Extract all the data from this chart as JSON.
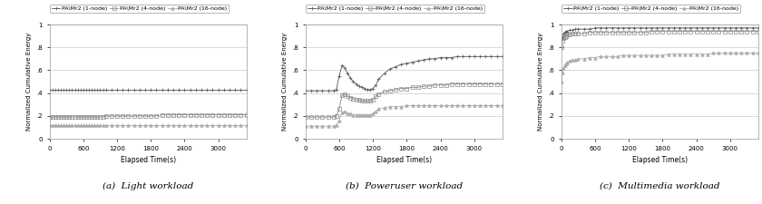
{
  "legend_labels": [
    "PA\\Mr2 (1-node)",
    "PA\\Mr2 (4-node)",
    "PA\\Mr2 (16-node)"
  ],
  "xlabel": "Elapsed Time(s)",
  "ylabel": "Normalized Cumulative Energy",
  "xlim": [
    0,
    3500
  ],
  "xticks": [
    0,
    600,
    1200,
    1800,
    2400,
    3000
  ],
  "yticks": [
    0,
    0.2,
    0.4,
    0.6,
    0.8,
    1.0
  ],
  "yticklabels": [
    "0",
    ".2",
    ".4",
    ".6",
    ".8",
    "1"
  ],
  "subtitle_a": "(a)  Light workload",
  "subtitle_b": "(b)  Poweruser workload",
  "subtitle_c": "(c)  Multimedia workload",
  "chart_a": {
    "series": [
      {
        "label": "PA\\Mr2 (1-node)",
        "x": [
          0,
          50,
          100,
          150,
          200,
          250,
          300,
          350,
          400,
          450,
          500,
          550,
          600,
          650,
          700,
          750,
          800,
          850,
          900,
          950,
          1000,
          1100,
          1200,
          1300,
          1400,
          1500,
          1600,
          1700,
          1800,
          1900,
          2000,
          2100,
          2200,
          2300,
          2400,
          2500,
          2600,
          2700,
          2800,
          2900,
          3000,
          3100,
          3200,
          3300,
          3400,
          3500
        ],
        "y": [
          0.43,
          0.43,
          0.43,
          0.43,
          0.43,
          0.43,
          0.43,
          0.43,
          0.43,
          0.43,
          0.43,
          0.43,
          0.43,
          0.43,
          0.43,
          0.43,
          0.43,
          0.43,
          0.43,
          0.43,
          0.43,
          0.43,
          0.43,
          0.43,
          0.43,
          0.43,
          0.43,
          0.43,
          0.43,
          0.43,
          0.43,
          0.43,
          0.43,
          0.43,
          0.43,
          0.43,
          0.43,
          0.43,
          0.43,
          0.43,
          0.43,
          0.43,
          0.43,
          0.43,
          0.43,
          0.43
        ],
        "marker": "+",
        "color": "#555555"
      },
      {
        "label": "PA\\Mr2 (4-node)",
        "x": [
          0,
          50,
          100,
          150,
          200,
          250,
          300,
          350,
          400,
          450,
          500,
          550,
          600,
          650,
          700,
          750,
          800,
          850,
          900,
          950,
          1000,
          1100,
          1200,
          1300,
          1400,
          1500,
          1600,
          1700,
          1800,
          1900,
          2000,
          2100,
          2200,
          2300,
          2400,
          2500,
          2600,
          2700,
          2800,
          2900,
          3000,
          3100,
          3200,
          3300,
          3400,
          3500
        ],
        "y": [
          0.19,
          0.19,
          0.19,
          0.19,
          0.19,
          0.19,
          0.19,
          0.19,
          0.19,
          0.19,
          0.19,
          0.19,
          0.19,
          0.19,
          0.19,
          0.19,
          0.19,
          0.19,
          0.19,
          0.19,
          0.2,
          0.2,
          0.2,
          0.2,
          0.2,
          0.2,
          0.2,
          0.2,
          0.2,
          0.2,
          0.21,
          0.21,
          0.21,
          0.21,
          0.21,
          0.21,
          0.21,
          0.21,
          0.21,
          0.21,
          0.21,
          0.21,
          0.21,
          0.21,
          0.21,
          0.21
        ],
        "marker": "s",
        "color": "#888888"
      },
      {
        "label": "PA\\Mr2 (16-node)",
        "x": [
          0,
          50,
          100,
          150,
          200,
          250,
          300,
          350,
          400,
          450,
          500,
          550,
          600,
          650,
          700,
          750,
          800,
          850,
          900,
          950,
          1000,
          1100,
          1200,
          1300,
          1400,
          1500,
          1600,
          1700,
          1800,
          1900,
          2000,
          2100,
          2200,
          2300,
          2400,
          2500,
          2600,
          2700,
          2800,
          2900,
          3000,
          3100,
          3200,
          3300,
          3400,
          3500
        ],
        "y": [
          0.12,
          0.12,
          0.12,
          0.12,
          0.12,
          0.12,
          0.12,
          0.12,
          0.12,
          0.12,
          0.12,
          0.12,
          0.12,
          0.12,
          0.12,
          0.12,
          0.12,
          0.12,
          0.12,
          0.12,
          0.12,
          0.12,
          0.12,
          0.12,
          0.12,
          0.12,
          0.12,
          0.12,
          0.12,
          0.12,
          0.12,
          0.12,
          0.12,
          0.12,
          0.12,
          0.12,
          0.12,
          0.12,
          0.12,
          0.12,
          0.12,
          0.12,
          0.12,
          0.12,
          0.12,
          0.12
        ],
        "marker": "^",
        "color": "#aaaaaa"
      }
    ]
  },
  "chart_b": {
    "series": [
      {
        "label": "PA\\Mr2 (1-node)",
        "x": [
          0,
          100,
          200,
          300,
          400,
          500,
          550,
          600,
          650,
          700,
          750,
          800,
          850,
          900,
          950,
          1000,
          1050,
          1100,
          1150,
          1200,
          1250,
          1300,
          1400,
          1500,
          1600,
          1700,
          1800,
          1900,
          2000,
          2100,
          2200,
          2300,
          2400,
          2500,
          2600,
          2700,
          2800,
          2900,
          3000,
          3100,
          3200,
          3300,
          3400,
          3500
        ],
        "y": [
          0.42,
          0.42,
          0.42,
          0.42,
          0.42,
          0.42,
          0.43,
          0.55,
          0.64,
          0.62,
          0.57,
          0.53,
          0.5,
          0.48,
          0.46,
          0.45,
          0.44,
          0.43,
          0.43,
          0.44,
          0.47,
          0.52,
          0.57,
          0.61,
          0.63,
          0.65,
          0.66,
          0.67,
          0.68,
          0.69,
          0.7,
          0.7,
          0.71,
          0.71,
          0.71,
          0.72,
          0.72,
          0.72,
          0.72,
          0.72,
          0.72,
          0.72,
          0.72,
          0.72
        ],
        "marker": "+",
        "color": "#555555"
      },
      {
        "label": "PA\\Mr2 (4-node)",
        "x": [
          0,
          100,
          200,
          300,
          400,
          500,
          550,
          600,
          650,
          700,
          750,
          800,
          850,
          900,
          950,
          1000,
          1050,
          1100,
          1150,
          1200,
          1250,
          1300,
          1400,
          1500,
          1600,
          1700,
          1800,
          1900,
          2000,
          2100,
          2200,
          2300,
          2400,
          2500,
          2600,
          2700,
          2800,
          2900,
          3000,
          3100,
          3200,
          3300,
          3400,
          3500
        ],
        "y": [
          0.19,
          0.19,
          0.19,
          0.19,
          0.19,
          0.19,
          0.2,
          0.26,
          0.38,
          0.39,
          0.37,
          0.36,
          0.35,
          0.34,
          0.34,
          0.33,
          0.33,
          0.33,
          0.33,
          0.34,
          0.37,
          0.39,
          0.41,
          0.42,
          0.43,
          0.44,
          0.44,
          0.45,
          0.45,
          0.46,
          0.46,
          0.47,
          0.47,
          0.47,
          0.48,
          0.48,
          0.48,
          0.48,
          0.48,
          0.48,
          0.48,
          0.48,
          0.48,
          0.48
        ],
        "marker": "s",
        "color": "#888888"
      },
      {
        "label": "PA\\Mr2 (16-node)",
        "x": [
          0,
          100,
          200,
          300,
          400,
          500,
          550,
          600,
          650,
          700,
          750,
          800,
          850,
          900,
          950,
          1000,
          1050,
          1100,
          1150,
          1200,
          1250,
          1300,
          1400,
          1500,
          1600,
          1700,
          1800,
          1900,
          2000,
          2100,
          2200,
          2300,
          2400,
          2500,
          2600,
          2700,
          2800,
          2900,
          3000,
          3100,
          3200,
          3300,
          3400,
          3500
        ],
        "y": [
          0.11,
          0.11,
          0.11,
          0.11,
          0.11,
          0.11,
          0.12,
          0.16,
          0.23,
          0.24,
          0.22,
          0.22,
          0.21,
          0.21,
          0.21,
          0.21,
          0.21,
          0.21,
          0.21,
          0.22,
          0.24,
          0.26,
          0.27,
          0.28,
          0.28,
          0.28,
          0.29,
          0.29,
          0.29,
          0.29,
          0.29,
          0.29,
          0.29,
          0.29,
          0.29,
          0.29,
          0.29,
          0.29,
          0.29,
          0.29,
          0.29,
          0.29,
          0.29,
          0.29
        ],
        "marker": "^",
        "color": "#aaaaaa"
      }
    ]
  },
  "chart_c": {
    "series": [
      {
        "label": "PA\\Mr2 (1-node)",
        "x": [
          0,
          20,
          40,
          60,
          80,
          100,
          150,
          200,
          250,
          300,
          400,
          500,
          600,
          700,
          800,
          900,
          1000,
          1100,
          1200,
          1300,
          1400,
          1500,
          1600,
          1700,
          1800,
          1900,
          2000,
          2100,
          2200,
          2300,
          2400,
          2500,
          2600,
          2700,
          2800,
          2900,
          3000,
          3100,
          3200,
          3300,
          3400,
          3500
        ],
        "y": [
          0.8,
          0.88,
          0.92,
          0.93,
          0.94,
          0.94,
          0.95,
          0.95,
          0.96,
          0.96,
          0.96,
          0.96,
          0.97,
          0.97,
          0.97,
          0.97,
          0.97,
          0.97,
          0.97,
          0.97,
          0.97,
          0.97,
          0.97,
          0.97,
          0.97,
          0.97,
          0.97,
          0.97,
          0.97,
          0.97,
          0.97,
          0.97,
          0.97,
          0.97,
          0.97,
          0.97,
          0.97,
          0.97,
          0.97,
          0.97,
          0.97,
          0.97
        ],
        "marker": "+",
        "color": "#555555"
      },
      {
        "label": "PA\\Mr2 (4-node)",
        "x": [
          0,
          20,
          40,
          60,
          80,
          100,
          150,
          200,
          250,
          300,
          400,
          500,
          600,
          700,
          800,
          900,
          1000,
          1100,
          1200,
          1300,
          1400,
          1500,
          1600,
          1700,
          1800,
          1900,
          2000,
          2100,
          2200,
          2300,
          2400,
          2500,
          2600,
          2700,
          2800,
          2900,
          3000,
          3100,
          3200,
          3300,
          3400,
          3500
        ],
        "y": [
          0.8,
          0.86,
          0.88,
          0.89,
          0.9,
          0.91,
          0.91,
          0.92,
          0.92,
          0.92,
          0.92,
          0.93,
          0.93,
          0.93,
          0.93,
          0.93,
          0.93,
          0.93,
          0.93,
          0.93,
          0.93,
          0.93,
          0.94,
          0.94,
          0.94,
          0.94,
          0.94,
          0.94,
          0.94,
          0.94,
          0.94,
          0.94,
          0.94,
          0.94,
          0.94,
          0.94,
          0.94,
          0.94,
          0.94,
          0.94,
          0.94,
          0.94
        ],
        "marker": "s",
        "color": "#888888"
      },
      {
        "label": "PA\\Mr2 (16-node)",
        "x": [
          0,
          20,
          40,
          60,
          80,
          100,
          150,
          200,
          250,
          300,
          400,
          500,
          600,
          700,
          800,
          900,
          1000,
          1100,
          1200,
          1300,
          1400,
          1500,
          1600,
          1700,
          1800,
          1900,
          2000,
          2100,
          2200,
          2300,
          2400,
          2500,
          2600,
          2700,
          2800,
          2900,
          3000,
          3100,
          3200,
          3300,
          3400,
          3500
        ],
        "y": [
          0.5,
          0.58,
          0.62,
          0.64,
          0.66,
          0.67,
          0.68,
          0.69,
          0.69,
          0.7,
          0.7,
          0.71,
          0.71,
          0.72,
          0.72,
          0.72,
          0.72,
          0.73,
          0.73,
          0.73,
          0.73,
          0.73,
          0.73,
          0.73,
          0.73,
          0.74,
          0.74,
          0.74,
          0.74,
          0.74,
          0.74,
          0.74,
          0.74,
          0.75,
          0.75,
          0.75,
          0.75,
          0.75,
          0.75,
          0.75,
          0.75,
          0.75
        ],
        "marker": "^",
        "color": "#aaaaaa"
      }
    ]
  }
}
